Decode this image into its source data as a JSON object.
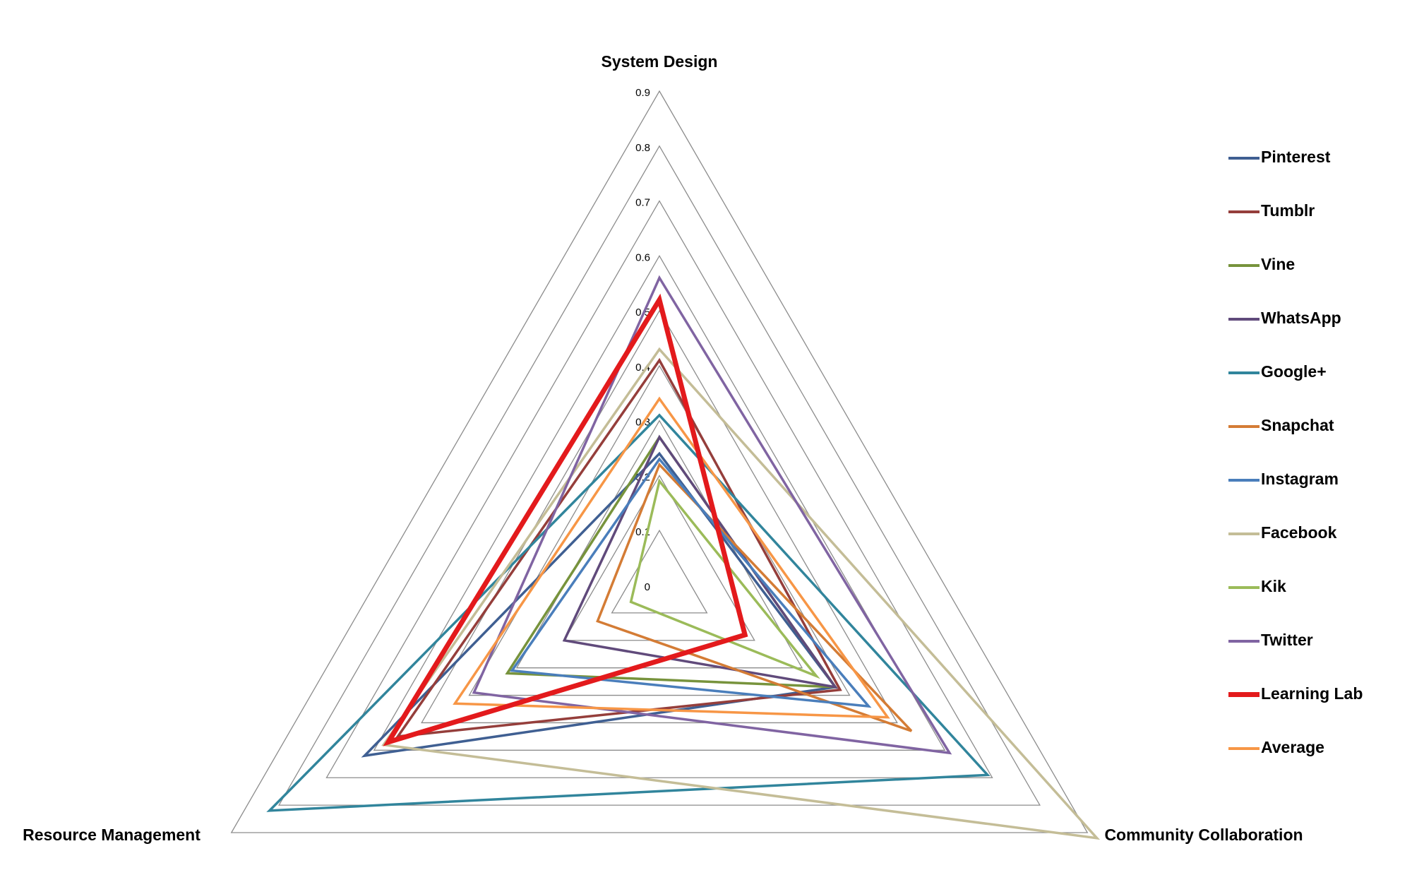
{
  "chart_data": {
    "type": "radar",
    "axes": [
      "System Design",
      "Community Collaboration",
      "Resource Management"
    ],
    "rlim": [
      0,
      0.9
    ],
    "ticks": [
      "0",
      "0.1",
      "0.2",
      "0.3",
      "0.4",
      "0.5",
      "0.6",
      "0.7",
      "0.8",
      "0.9"
    ],
    "grid": true,
    "legend_position": "right",
    "series": [
      {
        "name": "Pinterest",
        "color": "#3f5f92",
        "values": [
          0.24,
          0.37,
          0.62
        ]
      },
      {
        "name": "Tumblr",
        "color": "#953e3b",
        "values": [
          0.41,
          0.38,
          0.55
        ]
      },
      {
        "name": "Vine",
        "color": "#77933c",
        "values": [
          0.27,
          0.37,
          0.32
        ]
      },
      {
        "name": "WhatsApp",
        "color": "#604a7b",
        "values": [
          0.27,
          0.37,
          0.2
        ]
      },
      {
        "name": "Google+",
        "color": "#31859c",
        "values": [
          0.31,
          0.69,
          0.82
        ]
      },
      {
        "name": "Snapchat",
        "color": "#d47c35",
        "values": [
          0.22,
          0.53,
          0.13
        ]
      },
      {
        "name": "Instagram",
        "color": "#4a7ebb",
        "values": [
          0.23,
          0.44,
          0.31
        ]
      },
      {
        "name": "Facebook",
        "color": "#c4bd97",
        "values": [
          0.43,
          0.92,
          0.58
        ]
      },
      {
        "name": "Kik",
        "color": "#9bbb59",
        "values": [
          0.19,
          0.33,
          0.06
        ]
      },
      {
        "name": "Twitter",
        "color": "#8064a2",
        "values": [
          0.56,
          0.61,
          0.39
        ]
      },
      {
        "name": "Learning Lab",
        "color": "#e31a1c",
        "values": [
          0.52,
          0.18,
          0.57
        ]
      },
      {
        "name": "Average",
        "color": "#f79646",
        "values": [
          0.34,
          0.48,
          0.43
        ]
      }
    ]
  }
}
